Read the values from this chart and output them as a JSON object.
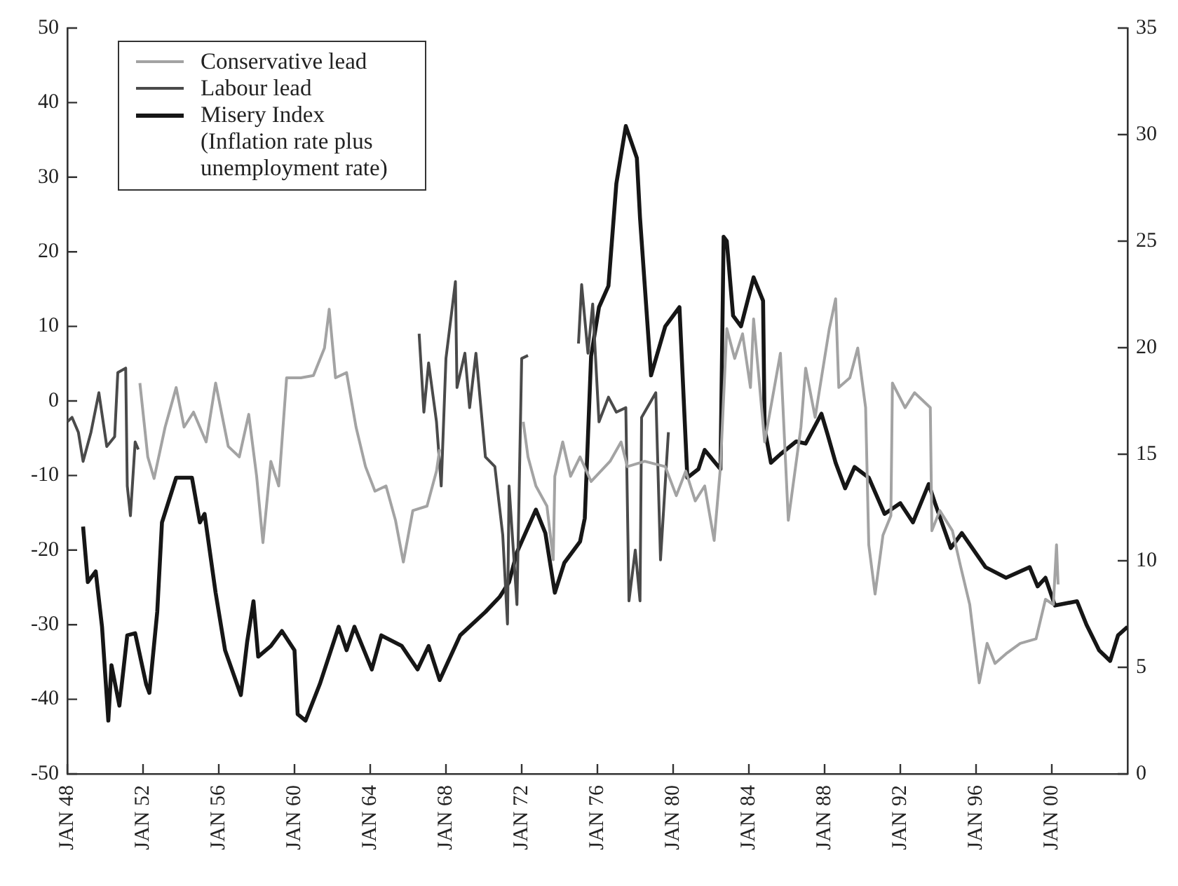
{
  "chart_data": {
    "type": "line",
    "legend": "top left",
    "marker": "none",
    "xlim": [
      "1948-01",
      "2004-01"
    ],
    "xticks": [
      {
        "value": "1948-01",
        "label": "JAN 48"
      },
      {
        "value": "1952-01",
        "label": "JAN 52"
      },
      {
        "value": "1956-01",
        "label": "JAN 56"
      },
      {
        "value": "1960-01",
        "label": "JAN 60"
      },
      {
        "value": "1964-01",
        "label": "JAN 64"
      },
      {
        "value": "1968-01",
        "label": "JAN 68"
      },
      {
        "value": "1972-01",
        "label": "JAN 72"
      },
      {
        "value": "1976-01",
        "label": "JAN 76"
      },
      {
        "value": "1980-01",
        "label": "JAN 80"
      },
      {
        "value": "1984-01",
        "label": "JAN 84"
      },
      {
        "value": "1988-01",
        "label": "JAN 88"
      },
      {
        "value": "1992-01",
        "label": "JAN 92"
      },
      {
        "value": "1996-01",
        "label": "JAN 96"
      },
      {
        "value": "2000-01",
        "label": "JAN 00"
      }
    ],
    "ylim": [
      -50,
      50
    ],
    "yticks": [
      -50,
      -40,
      -30,
      -20,
      -10,
      0,
      10,
      20,
      30,
      40,
      50
    ],
    "y2lim": [
      0,
      35
    ],
    "y2ticks": [
      0,
      5,
      10,
      15,
      20,
      25,
      30,
      35
    ],
    "series": [
      {
        "name": "Conservative lead",
        "color": "#a3a3a3",
        "x": [
          "1951-11",
          "1952-04",
          "1952-08",
          "1953-03",
          "1953-10",
          "1954-03",
          "1954-09",
          "1955-05",
          "1955-11",
          "1956-07",
          "1957-02",
          "1957-08",
          "1958-01",
          "1958-05",
          "1958-10",
          "1959-03",
          "1959-08",
          "1960-05",
          "1961-01",
          "1961-08",
          "1961-11",
          "1962-03",
          "1962-10",
          "1963-04",
          "1963-10",
          "1964-04",
          "1964-11",
          "1965-05",
          "1965-10",
          "1966-04",
          "1967-01",
          "1967-07",
          "1967-09",
          "1970-01",
          "1972-02",
          "1972-05",
          "1972-10",
          "1973-05",
          "1973-09",
          "1973-10",
          "1974-03",
          "1974-08",
          "1975-02",
          "1975-09",
          "1976-09",
          "1977-04",
          "1977-08",
          "1978-07",
          "1979-08",
          "1980-03",
          "1980-09",
          "1981-03",
          "1981-09",
          "1982-03",
          "1982-07",
          "1982-11",
          "1983-04",
          "1983-09",
          "1984-02",
          "1984-04",
          "1984-11",
          "1985-09",
          "1986-02",
          "1986-10",
          "1987-01",
          "1987-07",
          "1987-11",
          "1988-04",
          "1988-08",
          "1988-10",
          "1989-05",
          "1989-10",
          "1990-03",
          "1990-05",
          "1990-09",
          "1991-02",
          "1991-07",
          "1991-08",
          "1992-04",
          "1992-10",
          "1993-08",
          "1993-09",
          "1994-02",
          "1994-10",
          "1995-03",
          "1995-09",
          "1996-03",
          "1996-08",
          "1997-01",
          "1997-08",
          "1998-05",
          "1999-03",
          "1999-09",
          "2000-02",
          "2000-04",
          "2000-05"
        ],
        "values": [
          2.4,
          -7.5,
          -10.4,
          -3.5,
          1.8,
          -3.5,
          -1.5,
          -5.5,
          2.4,
          -6.1,
          -7.5,
          -1.8,
          -10.1,
          -19,
          -8.1,
          -11.4,
          3.1,
          3.1,
          3.4,
          7.1,
          12.3,
          3.1,
          3.8,
          -3.5,
          -8.8,
          -12.1,
          -11.4,
          -16,
          -21.6,
          -14.7,
          -14.1,
          -9.4,
          -6.5,
          null,
          -2.8,
          -7.5,
          -11.4,
          -14.1,
          -21.3,
          -10.1,
          -5.5,
          -10.1,
          -7.5,
          -10.8,
          -8.1,
          -5.5,
          -8.8,
          -8.1,
          -8.8,
          -12.7,
          -9.4,
          -13.4,
          -11.4,
          -18.7,
          -8.8,
          9.7,
          5.7,
          9,
          1.8,
          11,
          -5.5,
          6.4,
          -16,
          -3.5,
          4.4,
          -2.2,
          3.1,
          9.7,
          13.7,
          1.8,
          3.1,
          7.1,
          -0.9,
          -19.3,
          -25.9,
          -18,
          -15.4,
          2.4,
          -0.9,
          1.1,
          -0.9,
          -17.4,
          -14.7,
          -17.4,
          -22,
          -27.3,
          -37.8,
          -32.5,
          -35.2,
          -33.9,
          -32.5,
          -31.9,
          -26.6,
          -27.3,
          -19.3,
          -24.6
        ]
      },
      {
        "name": "Labour lead",
        "color": "#4a4a4a",
        "x": [
          "1948-01",
          "1948-04",
          "1948-08",
          "1948-11",
          "1949-04",
          "1949-09",
          "1950-02",
          "1950-07",
          "1950-09",
          "1951-02",
          "1951-03",
          "1951-05",
          "1951-08",
          "1951-10",
          "1960-01",
          "1966-08",
          "1966-11",
          "1967-02",
          "1967-07",
          "1967-10",
          "1968-01",
          "1968-07",
          "1968-08",
          "1969-01",
          "1969-04",
          "1969-08",
          "1970-02",
          "1970-08",
          "1971-01",
          "1971-04",
          "1971-05",
          "1971-10",
          "1972-01",
          "1972-05",
          "1974-01",
          "1975-01",
          "1975-03",
          "1975-07",
          "1975-10",
          "1976-02",
          "1976-08",
          "1977-01",
          "1977-07",
          "1977-09",
          "1978-01",
          "1978-04",
          "1978-05",
          "1979-02",
          "1979-05",
          "1979-10"
        ],
        "values": [
          -2.8,
          -2.2,
          -4.2,
          -8.1,
          -4.2,
          1.1,
          -6.1,
          -4.8,
          3.8,
          4.4,
          -11.4,
          -15.4,
          -5.5,
          -6.5,
          null,
          9,
          -1.5,
          5.1,
          -2.8,
          -11.4,
          5.7,
          16,
          1.8,
          6.4,
          -0.9,
          6.4,
          -7.5,
          -8.8,
          -18,
          -29.9,
          -11.4,
          -27.3,
          5.7,
          6.1,
          null,
          7.7,
          15.6,
          6.4,
          13,
          -2.8,
          0.5,
          -1.5,
          -0.9,
          -26.8,
          -20,
          -26.8,
          -2.2,
          1.1,
          -21.3,
          -4.2
        ]
      },
      {
        "name": "Misery Index (Inflation rate plus unemployment rate)",
        "color": "#161616",
        "axis": "y2",
        "x": [
          "1948-11",
          "1949-02",
          "1949-07",
          "1949-11",
          "1950-03",
          "1950-05",
          "1950-10",
          "1951-03",
          "1951-08",
          "1952-03",
          "1952-05",
          "1952-10",
          "1953-01",
          "1953-10",
          "1954-08",
          "1955-01",
          "1955-04",
          "1955-11",
          "1956-05",
          "1957-03",
          "1957-07",
          "1957-11",
          "1958-02",
          "1958-10",
          "1959-05",
          "1960-01",
          "1960-03",
          "1960-08",
          "1961-05",
          "1962-05",
          "1962-10",
          "1963-03",
          "1964-02",
          "1964-08",
          "1965-09",
          "1966-07",
          "1967-02",
          "1967-09",
          "1968-10",
          "1970-02",
          "1970-11",
          "1971-05",
          "1971-10",
          "1972-10",
          "1973-04",
          "1973-10",
          "1974-04",
          "1975-02",
          "1975-05",
          "1975-09",
          "1976-02",
          "1976-08",
          "1977-01",
          "1977-07",
          "1978-02",
          "1978-04",
          "1978-11",
          "1979-08",
          "1980-05",
          "1980-10",
          "1981-05",
          "1981-09",
          "1982-07",
          "1982-09",
          "1982-11",
          "1983-03",
          "1983-08",
          "1984-04",
          "1984-10",
          "1984-11",
          "1985-03",
          "1985-09",
          "1986-07",
          "1987-01",
          "1987-11",
          "1988-03",
          "1988-08",
          "1989-02",
          "1989-08",
          "1990-05",
          "1991-03",
          "1992-01",
          "1992-09",
          "1993-07",
          "1993-11",
          "1994-09",
          "1995-04",
          "1996-07",
          "1997-08",
          "1998-11",
          "1999-04",
          "1999-09",
          "2000-03",
          "2001-05",
          "2001-11",
          "2002-07",
          "2003-02",
          "2003-07",
          "2004-01"
        ],
        "values": [
          11.6,
          9,
          9.5,
          6.9,
          2.5,
          5.1,
          3.2,
          6.5,
          6.6,
          4.2,
          3.8,
          7.6,
          11.8,
          13.9,
          13.9,
          11.8,
          12.2,
          8.5,
          5.8,
          3.7,
          6.2,
          8.1,
          5.5,
          6,
          6.7,
          5.8,
          2.8,
          2.5,
          4.2,
          6.9,
          5.8,
          6.9,
          4.9,
          6.5,
          6,
          4.9,
          6,
          4.4,
          6.5,
          7.6,
          8.3,
          9,
          10.4,
          12.4,
          11.3,
          8.5,
          9.9,
          10.9,
          12,
          19.6,
          21.9,
          22.9,
          27.7,
          30.4,
          28.9,
          26.1,
          18.7,
          21,
          21.9,
          13.9,
          14.3,
          15.2,
          14.3,
          25.2,
          25,
          21.5,
          21,
          23.3,
          22.2,
          16.2,
          14.6,
          15,
          15.6,
          15.5,
          16.9,
          15.9,
          14.6,
          13.4,
          14.4,
          13.9,
          12.2,
          12.7,
          11.8,
          13.6,
          12.7,
          10.6,
          11.3,
          9.7,
          9.2,
          9.7,
          8.8,
          9.2,
          7.9,
          8.1,
          7,
          5.8,
          5.3,
          6.5,
          6.9
        ]
      }
    ]
  }
}
